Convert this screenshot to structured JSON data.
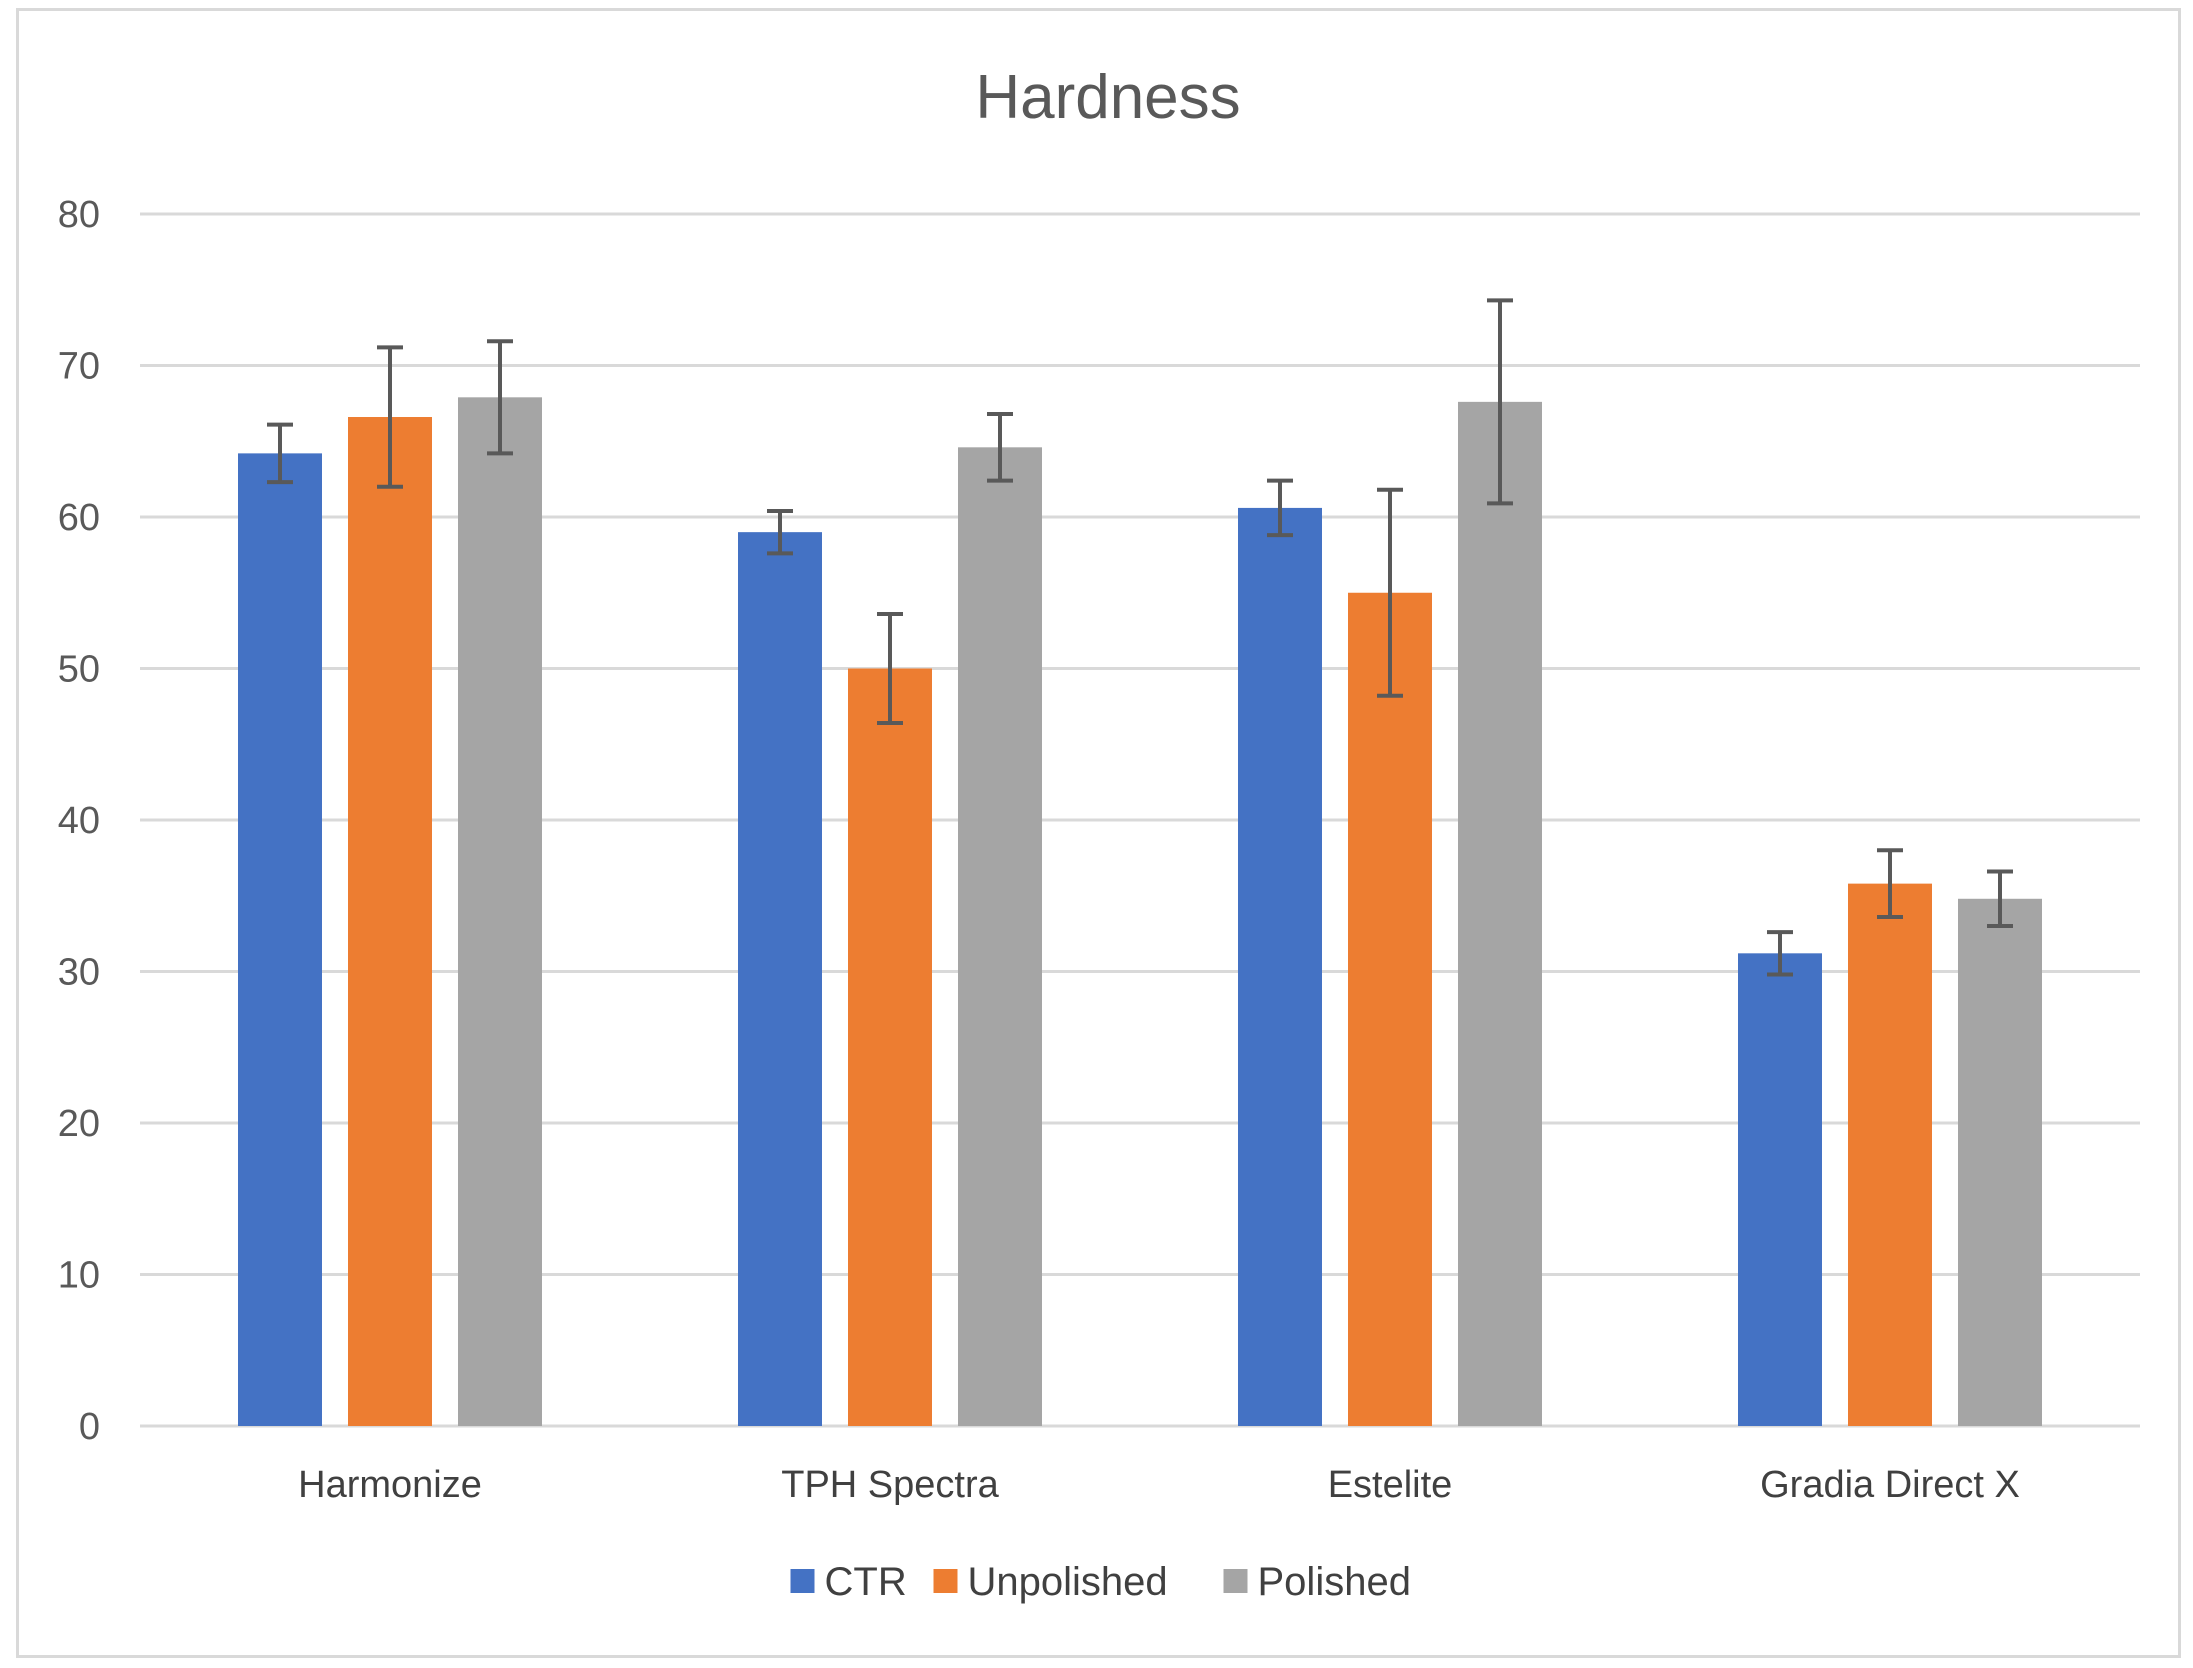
{
  "chart_data": {
    "type": "bar",
    "title": "Hardness",
    "xlabel": "",
    "ylabel": "",
    "ylim": [
      0,
      80
    ],
    "yticks": [
      0,
      10,
      20,
      30,
      40,
      50,
      60,
      70,
      80
    ],
    "grid": true,
    "legend_position": "bottom",
    "categories": [
      "Harmonize",
      "TPH Spectra",
      "Estelite",
      "Gradia Direct X"
    ],
    "series": [
      {
        "name": "CTR",
        "color": "#4472c4",
        "values": [
          64.2,
          59.0,
          60.6,
          31.2
        ],
        "errors": [
          1.9,
          1.4,
          1.8,
          1.4
        ]
      },
      {
        "name": "Unpolished",
        "color": "#ed7d31",
        "values": [
          66.6,
          50.0,
          55.0,
          35.8
        ],
        "errors": [
          4.6,
          3.6,
          6.8,
          2.2
        ]
      },
      {
        "name": "Polished",
        "color": "#a5a5a5",
        "values": [
          67.9,
          64.6,
          67.6,
          34.8
        ],
        "errors": [
          3.7,
          2.2,
          6.7,
          1.8
        ]
      }
    ]
  }
}
